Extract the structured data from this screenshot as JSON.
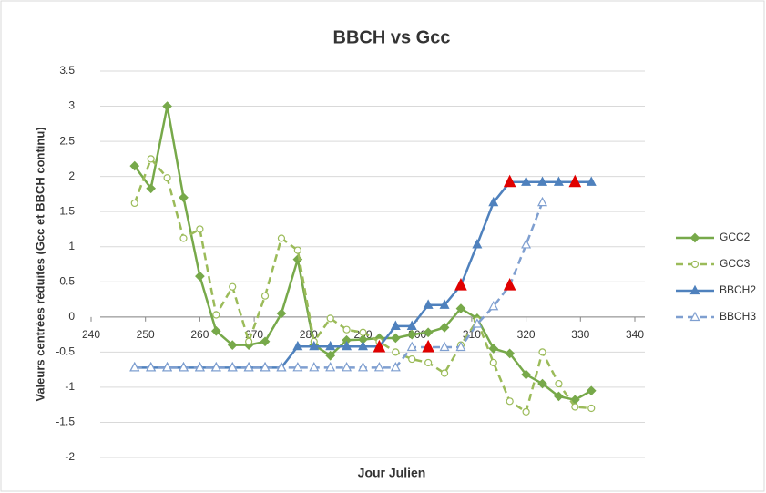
{
  "chart_data": {
    "type": "line",
    "title": "BBCH vs Gcc",
    "x_label": "Jour Julien",
    "y_label": "Valeurs centrées réduites (Gcc et BBCH continu)",
    "xlim": [
      240,
      340
    ],
    "xticks": [
      240,
      250,
      260,
      270,
      280,
      290,
      300,
      310,
      320,
      330,
      340
    ],
    "ylim": [
      -2,
      3.5
    ],
    "yticks": [
      -2,
      -1.5,
      -1,
      -0.5,
      0,
      0.5,
      1,
      1.5,
      2,
      2.5,
      3,
      3.5
    ],
    "grid": true,
    "legend": "right",
    "x": [
      248,
      251,
      254,
      257,
      260,
      263,
      266,
      269,
      272,
      275,
      278,
      281,
      284,
      287,
      290,
      293,
      296,
      299,
      302,
      305,
      308,
      311,
      314,
      317,
      320,
      323,
      326,
      329,
      332
    ],
    "series": [
      {
        "name": "GCC2",
        "color": "#77a94a",
        "dash": false,
        "marker": "diamond",
        "filled": true,
        "values": [
          2.15,
          1.83,
          3.0,
          1.7,
          0.58,
          -0.2,
          -0.4,
          -0.4,
          -0.35,
          0.05,
          0.82,
          -0.4,
          -0.55,
          -0.33,
          -0.32,
          -0.3,
          -0.3,
          -0.25,
          -0.22,
          -0.15,
          0.12,
          -0.02,
          -0.45,
          -0.52,
          -0.82,
          -0.95,
          -1.13,
          -1.18,
          -1.05
        ]
      },
      {
        "name": "GCC3",
        "color": "#9bbb59",
        "dash": true,
        "marker": "circle",
        "filled": false,
        "values": [
          1.62,
          2.25,
          1.98,
          1.12,
          1.25,
          0.03,
          0.43,
          -0.35,
          0.3,
          1.12,
          0.95,
          -0.35,
          -0.02,
          -0.18,
          -0.22,
          -0.35,
          -0.5,
          -0.6,
          -0.65,
          -0.8,
          -0.4,
          -0.05,
          -0.65,
          -1.2,
          -1.35,
          -0.5,
          -0.95,
          -1.28,
          -1.3
        ]
      },
      {
        "name": "BBCH2",
        "color": "#4f81bd",
        "dash": false,
        "marker": "triangle",
        "filled": true,
        "values": [
          -0.72,
          -0.72,
          -0.72,
          -0.72,
          -0.72,
          -0.72,
          -0.72,
          -0.72,
          -0.72,
          -0.72,
          -0.42,
          -0.42,
          -0.42,
          -0.42,
          -0.42,
          -0.42,
          -0.13,
          -0.13,
          0.17,
          0.17,
          0.45,
          1.03,
          1.63,
          1.92,
          1.92,
          1.92,
          1.92,
          1.92,
          1.92
        ]
      },
      {
        "name": "BBCH3",
        "color": "#7f9fd0",
        "dash": true,
        "marker": "triangle",
        "filled": false,
        "values": [
          -0.72,
          -0.72,
          -0.72,
          -0.72,
          -0.72,
          -0.72,
          -0.72,
          -0.72,
          -0.72,
          -0.72,
          -0.72,
          -0.72,
          -0.72,
          -0.72,
          -0.72,
          -0.72,
          -0.72,
          -0.43,
          -0.43,
          -0.43,
          -0.43,
          -0.1,
          0.15,
          0.45,
          1.03,
          1.63,
          null,
          null,
          null
        ]
      }
    ],
    "highlight_points": {
      "color": "#e00000",
      "x": [
        293,
        302,
        308,
        317,
        317,
        329
      ],
      "values": [
        -0.43,
        -0.43,
        0.45,
        0.45,
        1.92,
        1.92
      ]
    }
  }
}
